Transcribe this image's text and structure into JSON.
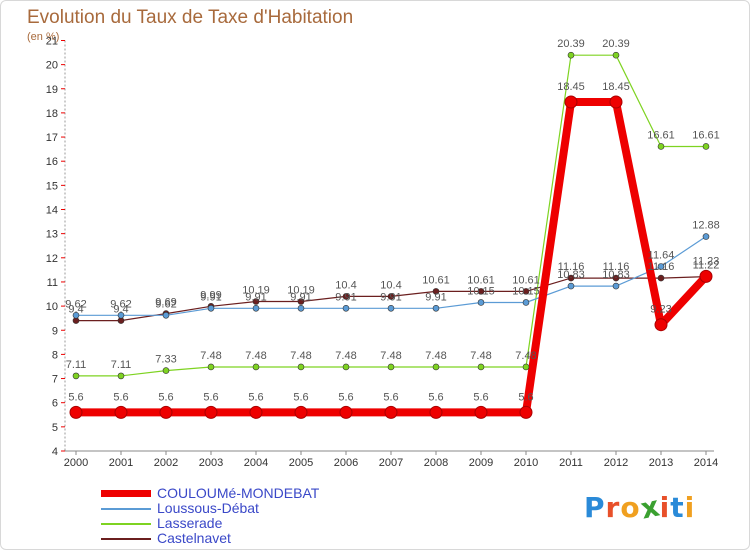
{
  "header": {
    "title": "Evolution du Taux de Taxe d'Habitation",
    "unit": "(en %)"
  },
  "logo": {
    "letters": [
      "P",
      "r",
      "o",
      "x",
      "i",
      "t",
      "i"
    ],
    "colors": [
      "#2a8ad8",
      "#e8502a",
      "#f0a020",
      "#3aa030",
      "#e8502a",
      "#2a8ad8",
      "#f0a020"
    ]
  },
  "chart_data": {
    "type": "line",
    "title": "Evolution du Taux de Taxe d'Habitation",
    "ylabel": "(en %)",
    "xlabel": "",
    "ylim": [
      4,
      21
    ],
    "grid": false,
    "x": [
      "2000",
      "2001",
      "2002",
      "2003",
      "2004",
      "2005",
      "2006",
      "2007",
      "2008",
      "2009",
      "2010",
      "2011",
      "2012",
      "2013",
      "2014"
    ],
    "yticks": [
      4,
      5,
      6,
      7,
      8,
      9,
      10,
      11,
      12,
      13,
      14,
      15,
      16,
      17,
      18,
      19,
      20,
      21
    ],
    "legend_position": "bottom-left",
    "series": [
      {
        "name": "COULOUMé-MONDEBAT",
        "color": "#ee0000",
        "values": [
          5.6,
          5.6,
          5.6,
          5.6,
          5.6,
          5.6,
          5.6,
          5.6,
          5.6,
          5.6,
          5.6,
          18.45,
          18.45,
          9.23,
          11.23
        ],
        "labels": [
          "5.6",
          "5.6",
          "5.6",
          "5.6",
          "5.6",
          "5.6",
          "5.6",
          "5.6",
          "5.6",
          "5.6",
          "5.6",
          "18.45",
          "18.45",
          "9.23",
          "11.23"
        ]
      },
      {
        "name": "Loussous-Débat",
        "color": "#5b9bd5",
        "values": [
          9.62,
          9.62,
          9.62,
          9.91,
          9.91,
          9.91,
          9.91,
          9.91,
          9.91,
          10.15,
          10.15,
          10.83,
          10.83,
          11.64,
          12.88
        ],
        "labels": [
          "9.62",
          "9.62",
          "9.62",
          "9.91",
          "9.91",
          "9.91",
          "9.91",
          "9.91",
          "9.91",
          "10.15",
          "10.15",
          "10.83",
          "10.83",
          "11.64",
          "12.88"
        ]
      },
      {
        "name": "Lasserade",
        "color": "#7ed321",
        "values": [
          7.11,
          7.11,
          7.33,
          7.48,
          7.48,
          7.48,
          7.48,
          7.48,
          7.48,
          7.48,
          7.48,
          20.39,
          20.39,
          16.61,
          16.61
        ],
        "labels": [
          "7.11",
          "7.11",
          "7.33",
          "7.48",
          "7.48",
          "7.48",
          "7.48",
          "7.48",
          "7.48",
          "7.48",
          "7.48",
          "20.39",
          "20.39",
          "16.61",
          "16.61"
        ]
      },
      {
        "name": "Castelnavet",
        "color": "#6b1f1f",
        "values": [
          9.4,
          9.4,
          9.69,
          9.99,
          10.19,
          10.19,
          10.4,
          10.4,
          10.61,
          10.61,
          10.61,
          11.16,
          11.16,
          11.16,
          11.22
        ],
        "labels": [
          "9.4",
          "9.4",
          "9.69",
          "9.99",
          "10.19",
          "10.19",
          "10.4",
          "10.4",
          "10.61",
          "10.61",
          "10.61",
          "11.16",
          "11.16",
          "11.16",
          "11.22"
        ]
      }
    ]
  }
}
